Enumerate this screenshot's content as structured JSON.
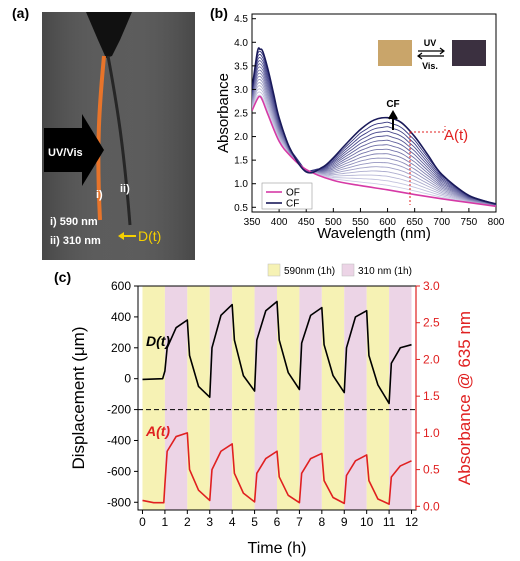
{
  "panel_a": {
    "label": "(a)",
    "arrow_text": "UV/Vis",
    "fiber_i": "i)",
    "fiber_ii": "ii)",
    "legend_i": "i) 590 nm",
    "legend_ii": "ii) 310 nm",
    "dt_label": "D(t)",
    "colors": {
      "background": "#5a5a5a",
      "fiber_i": "#e8742a",
      "fiber_ii": "#2a2a2a",
      "dt": "#f5d000"
    }
  },
  "panel_b": {
    "label": "(b)",
    "cf_label": "CF",
    "at_label": "A(t)",
    "uv_label": "UV",
    "vis_label": "Vis.",
    "colors": {
      "of": "#d63aa6",
      "cf": "#1a1a5a",
      "at": "#e02020"
    }
  },
  "panel_c": {
    "label": "(c)",
    "legend_590": "590nm (1h)",
    "legend_310": "310 nm (1h)",
    "dt_label": "D(t)",
    "at_label": "A(t)",
    "colors": {
      "band_590": "#f6f2b4",
      "band_310": "#ecd4e6",
      "right_axis": "#e02020"
    }
  },
  "chart_data": [
    {
      "type": "line",
      "xlabel": "Wavelength (nm)",
      "ylabel": "Absorbance",
      "xlim": [
        350,
        800
      ],
      "ylim": [
        0.4,
        4.6
      ],
      "xticks": [
        350,
        400,
        450,
        500,
        550,
        600,
        650,
        700,
        750,
        800
      ],
      "yticks": [
        0.5,
        1.0,
        1.5,
        2.0,
        2.5,
        3.0,
        3.5,
        4.0,
        4.5
      ],
      "legend_position": "bottom-left",
      "series": [
        {
          "name": "OF",
          "color": "#d63aa6",
          "x": [
            350,
            360,
            365,
            370,
            380,
            400,
            420,
            450,
            500,
            550,
            600,
            650,
            700,
            750,
            800
          ],
          "y": [
            2.55,
            2.8,
            2.85,
            2.75,
            2.45,
            1.9,
            1.6,
            1.3,
            1.07,
            0.96,
            0.87,
            0.77,
            0.68,
            0.6,
            0.52
          ]
        },
        {
          "name": "CF",
          "color": "#1a1a5a",
          "x": [
            350,
            360,
            365,
            370,
            380,
            390,
            400,
            420,
            450,
            480,
            500,
            520,
            550,
            575,
            600,
            625,
            650,
            675,
            700,
            750,
            800
          ],
          "y": [
            3.0,
            3.8,
            3.85,
            3.8,
            3.4,
            2.9,
            2.4,
            1.75,
            1.25,
            1.35,
            1.55,
            1.8,
            2.15,
            2.35,
            2.4,
            2.3,
            2.0,
            1.6,
            1.2,
            0.75,
            0.57
          ]
        }
      ]
    },
    {
      "type": "line",
      "xlabel": "Time (h)",
      "ylabel": "Displacement (μm)",
      "y2label": "Absorbance @ 635 nm",
      "xlim": [
        -0.2,
        12.2
      ],
      "ylim": [
        -850,
        600
      ],
      "y2lim": [
        -0.05,
        3.0
      ],
      "xticks": [
        0,
        1,
        2,
        3,
        4,
        5,
        6,
        7,
        8,
        9,
        10,
        11,
        12
      ],
      "yticks": [
        600,
        400,
        200,
        0,
        -200,
        -400,
        -600,
        -800
      ],
      "y2ticks": [
        0.0,
        0.5,
        1.0,
        1.5,
        2.0,
        2.5,
        3.0
      ],
      "reference_line_y": -200,
      "bands": [
        {
          "x0": 0,
          "x1": 1,
          "light": "590nm"
        },
        {
          "x0": 1,
          "x1": 2,
          "light": "310 nm"
        },
        {
          "x0": 2,
          "x1": 3,
          "light": "590nm"
        },
        {
          "x0": 3,
          "x1": 4,
          "light": "310 nm"
        },
        {
          "x0": 4,
          "x1": 5,
          "light": "590nm"
        },
        {
          "x0": 5,
          "x1": 6,
          "light": "310 nm"
        },
        {
          "x0": 6,
          "x1": 7,
          "light": "590nm"
        },
        {
          "x0": 7,
          "x1": 8,
          "light": "310 nm"
        },
        {
          "x0": 8,
          "x1": 9,
          "light": "590nm"
        },
        {
          "x0": 9,
          "x1": 10,
          "light": "310 nm"
        },
        {
          "x0": 10,
          "x1": 11,
          "light": "590nm"
        },
        {
          "x0": 11,
          "x1": 12,
          "light": "310 nm"
        }
      ],
      "series": [
        {
          "label": "D(t)",
          "axis": "left",
          "color": "#000000",
          "x": [
            0,
            0.9,
            1.0,
            1.1,
            1.5,
            2.0,
            2.1,
            2.5,
            3.0,
            3.1,
            3.5,
            4.0,
            4.1,
            4.5,
            5.0,
            5.1,
            5.5,
            6.0,
            6.1,
            6.5,
            7.0,
            7.1,
            7.5,
            8.0,
            8.1,
            8.5,
            9.0,
            9.1,
            9.5,
            10.0,
            10.1,
            10.5,
            11.0,
            11.1,
            11.5,
            12.0
          ],
          "y": [
            -5,
            0,
            50,
            200,
            330,
            380,
            150,
            -50,
            -120,
            200,
            410,
            480,
            250,
            20,
            -80,
            250,
            440,
            500,
            250,
            40,
            -70,
            230,
            410,
            460,
            220,
            20,
            -90,
            200,
            400,
            440,
            150,
            -40,
            -160,
            100,
            200,
            220
          ]
        },
        {
          "label": "A(t)",
          "axis": "right",
          "color": "#e02020",
          "x": [
            0,
            0.5,
            0.95,
            1.0,
            1.1,
            1.5,
            2.0,
            2.1,
            2.5,
            3.0,
            3.1,
            3.5,
            4.0,
            4.1,
            4.5,
            5.0,
            5.1,
            5.5,
            6.0,
            6.1,
            6.5,
            7.0,
            7.1,
            7.5,
            8.0,
            8.1,
            8.5,
            9.0,
            9.1,
            9.5,
            10.0,
            10.1,
            10.5,
            11.0,
            11.1,
            11.5,
            12.0
          ],
          "y": [
            0.08,
            0.05,
            0.05,
            0.3,
            0.75,
            0.95,
            1.0,
            0.5,
            0.22,
            0.08,
            0.5,
            0.75,
            0.85,
            0.45,
            0.18,
            0.06,
            0.45,
            0.65,
            0.75,
            0.4,
            0.15,
            0.05,
            0.45,
            0.65,
            0.72,
            0.35,
            0.12,
            0.04,
            0.42,
            0.62,
            0.7,
            0.35,
            0.1,
            0.03,
            0.4,
            0.55,
            0.62
          ]
        }
      ]
    }
  ]
}
